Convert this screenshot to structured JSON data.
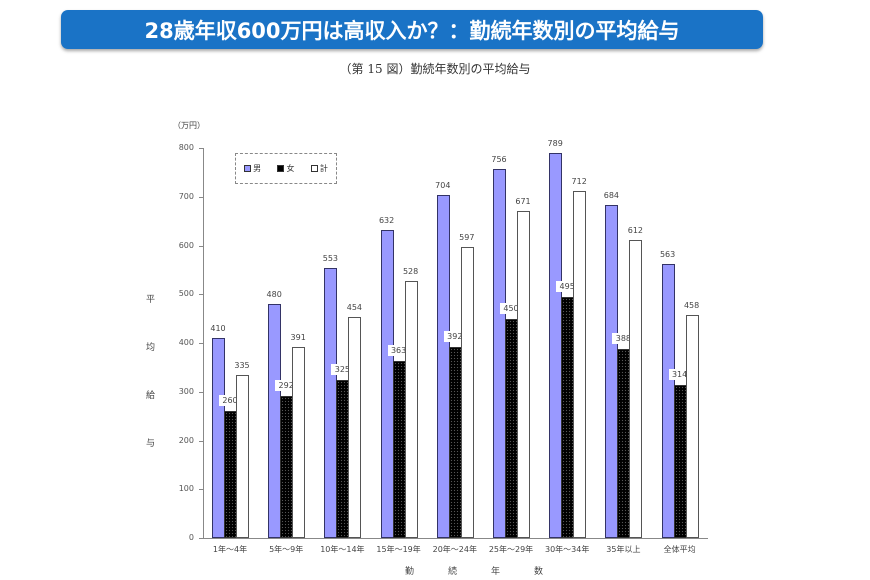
{
  "header": {
    "banner_title": "28歳年収600万円は高収入か？：勤続年数別の平均給与",
    "figure_caption": "（第 15 図）勤続年数別の平均給与"
  },
  "colors": {
    "banner": "#1a73c6",
    "male": "#9999ff",
    "female": "#000000",
    "total": "#ffffff"
  },
  "chart_data": {
    "type": "bar",
    "title": "勤続年数別の平均給与",
    "xlabel": "勤 続 年 数",
    "ylabel": "平 均 給 与",
    "unit": "（万円）",
    "ylim": [
      0,
      800
    ],
    "yticks": [
      0,
      100,
      200,
      300,
      400,
      500,
      600,
      700,
      800
    ],
    "grid": false,
    "legend_position": "top-left inside",
    "categories": [
      "1年～4年",
      "5年～9年",
      "10年～14年",
      "15年～19年",
      "20年～24年",
      "25年～29年",
      "30年～34年",
      "35年以上",
      "全体平均"
    ],
    "series": [
      {
        "name": "男",
        "values": [
          410,
          480,
          553,
          632,
          704,
          756,
          789,
          684,
          563
        ]
      },
      {
        "name": "女",
        "values": [
          260,
          292,
          325,
          363,
          392,
          450,
          495,
          388,
          314
        ]
      },
      {
        "name": "計",
        "values": [
          335,
          391,
          454,
          528,
          597,
          671,
          712,
          612,
          458
        ]
      }
    ]
  },
  "axis": {
    "unit_label": "（万円）",
    "ylabel_chars": [
      "平",
      "均",
      "給",
      "与"
    ],
    "xlabel_chars": [
      "勤",
      "続",
      "年",
      "数"
    ]
  },
  "legend": {
    "items": [
      "男",
      "女",
      "計"
    ]
  }
}
